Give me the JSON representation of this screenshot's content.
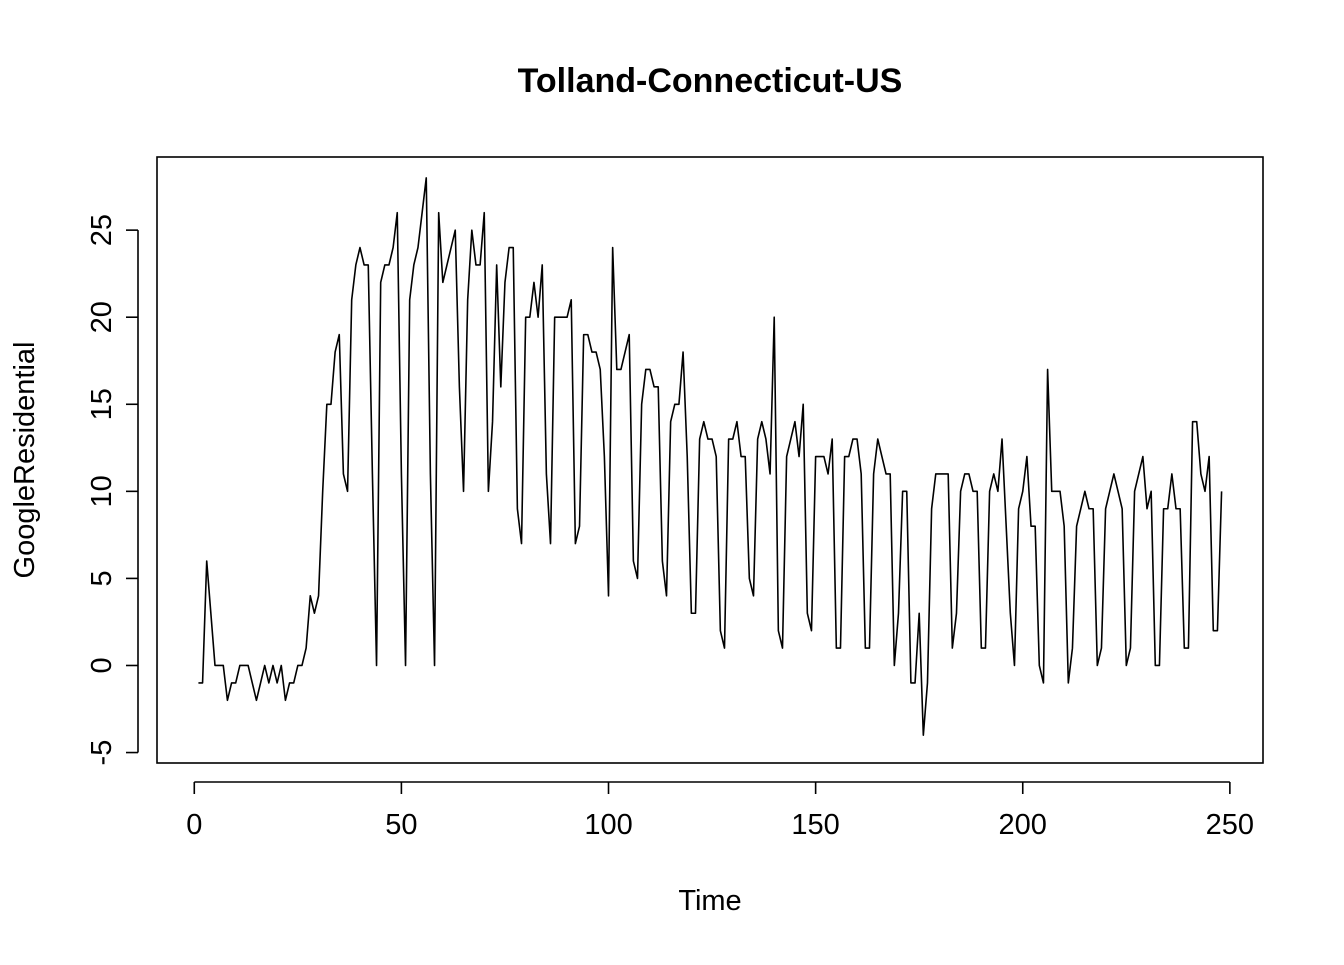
{
  "chart_data": {
    "type": "line",
    "title": "Tolland-Connecticut-US",
    "xlabel": "Time",
    "ylabel": "GoogleResidential",
    "xlim": [
      -9,
      258
    ],
    "ylim": [
      -5.6,
      29.2
    ],
    "grid": false,
    "legend": "none",
    "x_ticks": [
      0,
      50,
      100,
      150,
      200,
      250
    ],
    "y_ticks": [
      -5,
      0,
      5,
      10,
      15,
      20,
      25
    ],
    "x_tick_labels": [
      "0",
      "50",
      "100",
      "150",
      "200",
      "250"
    ],
    "y_tick_labels": [
      "-5",
      "0",
      "5",
      "10",
      "15",
      "20",
      "25"
    ],
    "x_start": 1,
    "line_color": "#000000",
    "series": [
      {
        "values": [
          -1,
          -1,
          6,
          3,
          0,
          0,
          0,
          -2,
          -1,
          -1,
          0,
          0,
          0,
          -1,
          -2,
          -1,
          0,
          -1,
          0,
          -1,
          0,
          -2,
          -1,
          -1,
          0,
          0,
          1,
          4,
          3,
          4,
          10,
          15,
          15,
          18,
          19,
          11,
          10,
          21,
          23,
          24,
          23,
          23,
          11,
          0,
          22,
          23,
          23,
          24,
          26,
          11,
          0,
          21,
          23,
          24,
          26,
          28,
          11,
          0,
          26,
          22,
          23,
          24,
          25,
          16,
          10,
          21,
          25,
          23,
          23,
          26,
          10,
          14,
          23,
          16,
          22,
          24,
          24,
          9,
          7,
          20,
          20,
          22,
          20,
          23,
          11,
          7,
          20,
          20,
          20,
          20,
          21,
          7,
          8,
          19,
          19,
          18,
          18,
          17,
          12,
          4,
          24,
          17,
          17,
          18,
          19,
          6,
          5,
          15,
          17,
          17,
          16,
          16,
          6,
          4,
          14,
          15,
          15,
          18,
          12,
          3,
          3,
          13,
          14,
          13,
          13,
          12,
          2,
          1,
          13,
          13,
          14,
          12,
          12,
          5,
          4,
          13,
          14,
          13,
          11,
          20,
          2,
          1,
          12,
          13,
          14,
          12,
          15,
          3,
          2,
          12,
          12,
          12,
          11,
          13,
          1,
          1,
          12,
          12,
          13,
          13,
          11,
          1,
          1,
          11,
          13,
          12,
          11,
          11,
          0,
          3,
          10,
          10,
          -1,
          -1,
          3,
          -4,
          -1,
          9,
          11,
          11,
          11,
          11,
          1,
          3,
          10,
          11,
          11,
          10,
          10,
          1,
          1,
          10,
          11,
          10,
          13,
          8,
          3,
          0,
          9,
          10,
          12,
          8,
          8,
          0,
          -1,
          17,
          10,
          10,
          10,
          8,
          -1,
          1,
          8,
          9,
          10,
          9,
          9,
          0,
          1,
          9,
          10,
          11,
          10,
          9,
          0,
          1,
          10,
          11,
          12,
          9,
          10,
          0,
          0,
          9,
          9,
          11,
          9,
          9,
          1,
          1,
          14,
          14,
          11,
          10,
          12,
          2,
          2,
          10
        ]
      }
    ]
  }
}
